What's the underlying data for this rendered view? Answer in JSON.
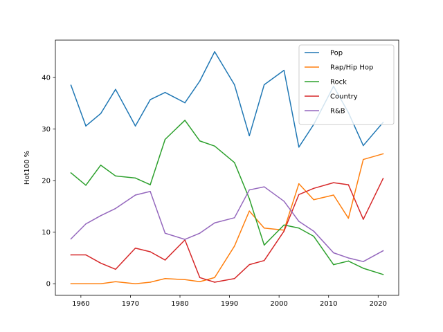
{
  "chart_data": {
    "type": "line",
    "title": "",
    "xlabel": "",
    "ylabel": "Hot100 %",
    "xlim": [
      1954.85,
      2024.15
    ],
    "ylim": [
      -2.25,
      47.25
    ],
    "x_ticks": [
      1960,
      1970,
      1980,
      1990,
      2000,
      2010,
      2020
    ],
    "y_ticks": [
      0,
      10,
      20,
      30,
      40
    ],
    "grid": false,
    "legend_position": "top-right",
    "x": [
      1958,
      1961,
      1964,
      1967,
      1971,
      1974,
      1977,
      1981,
      1984,
      1987,
      1991,
      1994,
      1997,
      2001,
      2004,
      2007,
      2011,
      2014,
      2017,
      2021
    ],
    "series": [
      {
        "name": "Pop",
        "color": "#1f77b4",
        "values": [
          38.5,
          30.6,
          33.0,
          37.7,
          30.6,
          35.7,
          37.1,
          35.1,
          39.3,
          45.0,
          38.6,
          28.7,
          38.6,
          41.4,
          26.5,
          30.9,
          38.3,
          33.2,
          26.8,
          31.3
        ]
      },
      {
        "name": "Rap/Hip Hop",
        "color": "#ff7f0e",
        "values": [
          0.0,
          0.0,
          0.0,
          0.4,
          0.0,
          0.3,
          1.0,
          0.8,
          0.4,
          1.2,
          7.3,
          14.1,
          10.8,
          10.4,
          19.4,
          16.3,
          17.2,
          12.7,
          24.1,
          25.2
        ]
      },
      {
        "name": "Rock",
        "color": "#2ca02c",
        "values": [
          21.5,
          19.1,
          23.0,
          20.9,
          20.5,
          19.2,
          28.0,
          31.7,
          27.7,
          26.7,
          23.5,
          16.5,
          7.5,
          11.4,
          10.8,
          9.2,
          3.7,
          4.4,
          3.0,
          1.8
        ]
      },
      {
        "name": "Country",
        "color": "#d62728",
        "values": [
          5.6,
          5.6,
          4.0,
          2.8,
          6.9,
          6.2,
          4.6,
          8.5,
          1.2,
          0.3,
          1.0,
          3.7,
          4.5,
          10.2,
          17.3,
          18.5,
          19.6,
          19.2,
          12.5,
          20.4
        ]
      },
      {
        "name": "R&B",
        "color": "#9467bd",
        "values": [
          8.7,
          11.6,
          13.2,
          14.6,
          17.2,
          17.9,
          9.8,
          8.6,
          9.8,
          11.8,
          12.8,
          18.2,
          18.8,
          16.0,
          12.1,
          10.2,
          6.0,
          5.0,
          4.3,
          6.4
        ]
      }
    ]
  }
}
